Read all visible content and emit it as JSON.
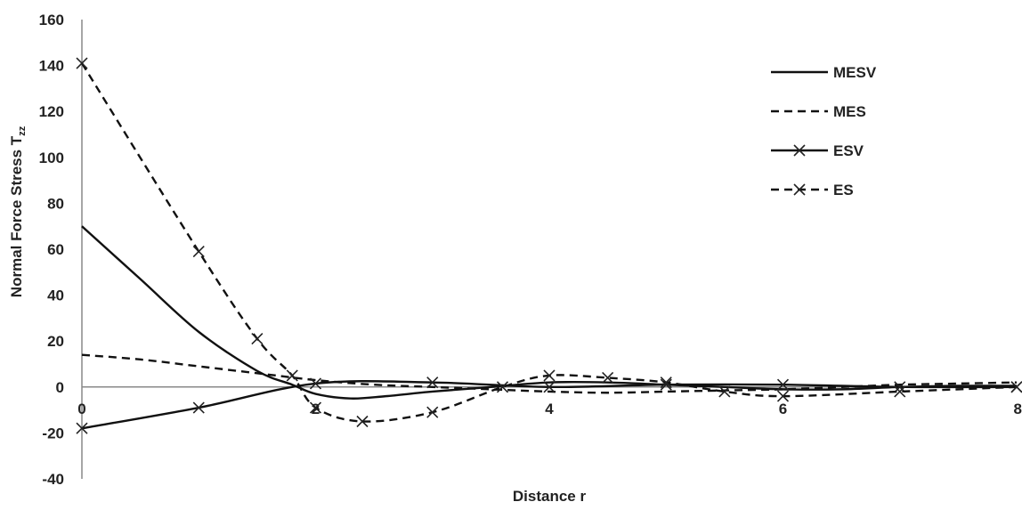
{
  "chart_data": {
    "type": "line",
    "title": "",
    "xlabel": "Distance r",
    "ylabel": "Normal Force Stress T",
    "ylabel_subscript": "zz",
    "xlim": [
      0,
      8
    ],
    "ylim": [
      -40,
      160
    ],
    "x_ticks": [
      0,
      2,
      4,
      6,
      8
    ],
    "y_ticks": [
      -40,
      -20,
      0,
      20,
      40,
      60,
      80,
      100,
      120,
      140,
      160
    ],
    "grid": false,
    "legend_position": "top-right",
    "series": [
      {
        "name": "MESV",
        "style": "solid",
        "marker": "none",
        "x": [
          0,
          0.5,
          1,
          1.5,
          1.8,
          2,
          2.3,
          2.6,
          3,
          3.5,
          4,
          4.5,
          5,
          5.5,
          6,
          6.5,
          7,
          7.5,
          8
        ],
        "y": [
          70,
          47,
          24,
          7,
          1,
          -3,
          -5,
          -4,
          -2,
          0,
          2,
          2,
          1,
          0,
          -1,
          -1,
          0,
          0.5,
          0.5
        ]
      },
      {
        "name": "MES",
        "style": "dashed",
        "marker": "none",
        "x": [
          0,
          0.5,
          1,
          1.5,
          2,
          2.5,
          3,
          3.5,
          4,
          4.5,
          5,
          5.5,
          6,
          6.5,
          7,
          7.5,
          8
        ],
        "y": [
          14,
          12,
          9,
          6,
          3,
          1,
          0,
          -1,
          -2,
          -2.5,
          -2,
          -1.5,
          -1,
          0,
          1,
          1.5,
          2
        ]
      },
      {
        "name": "ESV",
        "style": "solid",
        "marker": "x",
        "x": [
          0,
          1,
          2,
          3,
          4,
          5,
          6,
          7,
          8
        ],
        "y": [
          -18,
          -9,
          1.5,
          2,
          0,
          1,
          1,
          0,
          0
        ]
      },
      {
        "name": "ES",
        "style": "dashed",
        "marker": "x",
        "x": [
          0,
          1,
          1.5,
          1.8,
          2,
          2.4,
          3,
          3.6,
          4,
          4.5,
          5,
          5.5,
          6,
          7,
          8
        ],
        "y": [
          141,
          59,
          21,
          5,
          -9,
          -15,
          -11,
          0,
          5,
          4,
          2,
          -2,
          -4,
          -2,
          0
        ]
      }
    ]
  }
}
